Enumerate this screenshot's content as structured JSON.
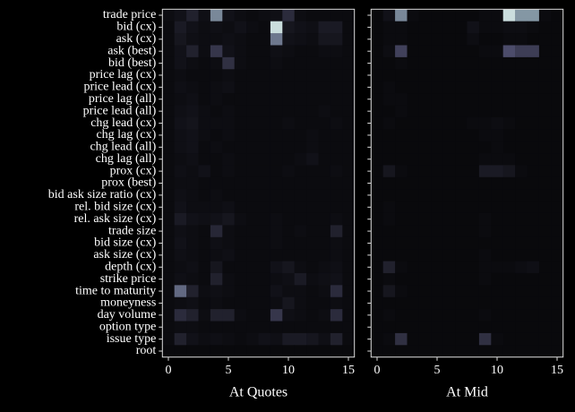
{
  "chart_data": [
    {
      "type": "heatmap",
      "xlabel": "At Quotes",
      "colormap": "bone",
      "categories": [
        "trade price",
        "bid (cx)",
        "ask (cx)",
        "ask (best)",
        "bid (best)",
        "price lag (cx)",
        "price lead (cx)",
        "price lag (all)",
        "price lead (all)",
        "chg lead (cx)",
        "chg lag (cx)",
        "chg lead (all)",
        "chg lag (all)",
        "prox (cx)",
        "prox (best)",
        "bid ask size ratio (cx)",
        "rel. bid size (cx)",
        "rel. ask size (cx)",
        "trade size",
        "bid size (cx)",
        "ask size (cx)",
        "depth (cx)",
        "strike price",
        "time to maturity",
        "moneyness",
        "day volume",
        "option type",
        "issue type",
        "root"
      ],
      "xlim": [
        -0.5,
        15.5
      ],
      "xticks": [
        0,
        5,
        10,
        15
      ],
      "z": [
        [
          0.06,
          0.08,
          0.15,
          0.07,
          0.55,
          0.08,
          0.06,
          0.05,
          0.06,
          0.07,
          0.2,
          0.06,
          0.05,
          0.05,
          0.05,
          0.05
        ],
        [
          0.05,
          0.12,
          0.08,
          0.06,
          0.07,
          0.06,
          0.08,
          0.06,
          0.05,
          0.85,
          0.1,
          0.08,
          0.07,
          0.12,
          0.12,
          0.05
        ],
        [
          0.05,
          0.1,
          0.07,
          0.06,
          0.06,
          0.07,
          0.06,
          0.05,
          0.05,
          0.5,
          0.08,
          0.07,
          0.06,
          0.1,
          0.1,
          0.05
        ],
        [
          0.05,
          0.08,
          0.15,
          0.06,
          0.25,
          0.08,
          0.06,
          0.05,
          0.05,
          0.07,
          0.06,
          0.05,
          0.05,
          0.06,
          0.06,
          0.05
        ],
        [
          0.05,
          0.08,
          0.06,
          0.05,
          0.06,
          0.22,
          0.06,
          0.05,
          0.05,
          0.06,
          0.05,
          0.05,
          0.05,
          0.05,
          0.05,
          0.05
        ],
        [
          0.05,
          0.06,
          0.05,
          0.05,
          0.05,
          0.06,
          0.05,
          0.05,
          0.05,
          0.05,
          0.05,
          0.05,
          0.05,
          0.05,
          0.05,
          0.05
        ],
        [
          0.05,
          0.07,
          0.06,
          0.05,
          0.06,
          0.07,
          0.05,
          0.05,
          0.05,
          0.05,
          0.05,
          0.05,
          0.05,
          0.05,
          0.05,
          0.05
        ],
        [
          0.05,
          0.06,
          0.07,
          0.05,
          0.06,
          0.05,
          0.05,
          0.05,
          0.05,
          0.05,
          0.05,
          0.05,
          0.05,
          0.05,
          0.05,
          0.05
        ],
        [
          0.05,
          0.07,
          0.08,
          0.06,
          0.05,
          0.06,
          0.05,
          0.05,
          0.05,
          0.05,
          0.05,
          0.05,
          0.05,
          0.06,
          0.05,
          0.05
        ],
        [
          0.05,
          0.08,
          0.09,
          0.06,
          0.06,
          0.06,
          0.05,
          0.05,
          0.05,
          0.05,
          0.06,
          0.05,
          0.05,
          0.05,
          0.06,
          0.05
        ],
        [
          0.05,
          0.07,
          0.08,
          0.06,
          0.05,
          0.06,
          0.05,
          0.05,
          0.05,
          0.05,
          0.05,
          0.05,
          0.06,
          0.05,
          0.05,
          0.05
        ],
        [
          0.05,
          0.07,
          0.08,
          0.05,
          0.06,
          0.05,
          0.05,
          0.05,
          0.05,
          0.05,
          0.05,
          0.05,
          0.06,
          0.05,
          0.05,
          0.05
        ],
        [
          0.05,
          0.06,
          0.07,
          0.05,
          0.05,
          0.06,
          0.05,
          0.05,
          0.05,
          0.05,
          0.05,
          0.06,
          0.08,
          0.05,
          0.05,
          0.05
        ],
        [
          0.05,
          0.07,
          0.06,
          0.08,
          0.05,
          0.06,
          0.05,
          0.05,
          0.05,
          0.05,
          0.06,
          0.05,
          0.05,
          0.05,
          0.06,
          0.05
        ],
        [
          0.05,
          0.06,
          0.06,
          0.05,
          0.05,
          0.05,
          0.05,
          0.05,
          0.05,
          0.05,
          0.05,
          0.05,
          0.05,
          0.05,
          0.05,
          0.05
        ],
        [
          0.05,
          0.07,
          0.06,
          0.05,
          0.06,
          0.05,
          0.05,
          0.05,
          0.05,
          0.05,
          0.05,
          0.05,
          0.05,
          0.05,
          0.05,
          0.05
        ],
        [
          0.05,
          0.08,
          0.06,
          0.06,
          0.06,
          0.07,
          0.05,
          0.05,
          0.05,
          0.05,
          0.05,
          0.05,
          0.05,
          0.05,
          0.05,
          0.05
        ],
        [
          0.05,
          0.12,
          0.08,
          0.07,
          0.08,
          0.1,
          0.06,
          0.05,
          0.05,
          0.06,
          0.05,
          0.05,
          0.05,
          0.05,
          0.06,
          0.05
        ],
        [
          0.05,
          0.07,
          0.06,
          0.05,
          0.18,
          0.06,
          0.05,
          0.05,
          0.05,
          0.06,
          0.05,
          0.06,
          0.05,
          0.05,
          0.15,
          0.05
        ],
        [
          0.05,
          0.08,
          0.06,
          0.05,
          0.07,
          0.06,
          0.05,
          0.05,
          0.05,
          0.06,
          0.05,
          0.05,
          0.05,
          0.05,
          0.06,
          0.05
        ],
        [
          0.05,
          0.07,
          0.06,
          0.05,
          0.06,
          0.07,
          0.05,
          0.05,
          0.05,
          0.05,
          0.05,
          0.05,
          0.05,
          0.05,
          0.06,
          0.05
        ],
        [
          0.05,
          0.06,
          0.07,
          0.05,
          0.1,
          0.05,
          0.05,
          0.05,
          0.05,
          0.08,
          0.1,
          0.06,
          0.05,
          0.06,
          0.07,
          0.05
        ],
        [
          0.05,
          0.07,
          0.06,
          0.05,
          0.15,
          0.06,
          0.05,
          0.05,
          0.05,
          0.06,
          0.07,
          0.12,
          0.06,
          0.07,
          0.08,
          0.05
        ],
        [
          0.05,
          0.45,
          0.15,
          0.06,
          0.07,
          0.06,
          0.05,
          0.05,
          0.05,
          0.08,
          0.06,
          0.06,
          0.05,
          0.06,
          0.2,
          0.05
        ],
        [
          0.05,
          0.06,
          0.07,
          0.05,
          0.06,
          0.05,
          0.05,
          0.05,
          0.05,
          0.06,
          0.1,
          0.06,
          0.05,
          0.05,
          0.06,
          0.05
        ],
        [
          0.05,
          0.2,
          0.15,
          0.06,
          0.15,
          0.15,
          0.06,
          0.05,
          0.05,
          0.25,
          0.07,
          0.06,
          0.05,
          0.06,
          0.2,
          0.05
        ],
        [
          0.05,
          0.06,
          0.06,
          0.05,
          0.05,
          0.05,
          0.05,
          0.05,
          0.05,
          0.05,
          0.05,
          0.05,
          0.05,
          0.05,
          0.05,
          0.05
        ],
        [
          0.05,
          0.15,
          0.08,
          0.06,
          0.07,
          0.06,
          0.05,
          0.06,
          0.08,
          0.07,
          0.12,
          0.12,
          0.1,
          0.07,
          0.15,
          0.05
        ],
        [
          0.04,
          0.04,
          0.04,
          0.04,
          0.04,
          0.04,
          0.04,
          0.04,
          0.04,
          0.04,
          0.04,
          0.04,
          0.04,
          0.04,
          0.04,
          0.04
        ]
      ]
    },
    {
      "type": "heatmap",
      "xlabel": "At Mid",
      "colormap": "bone",
      "xlim": [
        -0.5,
        15.5
      ],
      "xticks": [
        0,
        5,
        10,
        15
      ],
      "z": [
        [
          0.04,
          0.08,
          0.55,
          0.05,
          0.04,
          0.04,
          0.04,
          0.04,
          0.04,
          0.05,
          0.05,
          0.85,
          0.6,
          0.6,
          0.05,
          0.04
        ],
        [
          0.04,
          0.05,
          0.05,
          0.04,
          0.04,
          0.04,
          0.04,
          0.04,
          0.08,
          0.05,
          0.05,
          0.06,
          0.06,
          0.05,
          0.04,
          0.04
        ],
        [
          0.04,
          0.05,
          0.05,
          0.04,
          0.04,
          0.04,
          0.04,
          0.04,
          0.06,
          0.04,
          0.04,
          0.05,
          0.05,
          0.04,
          0.04,
          0.04
        ],
        [
          0.04,
          0.06,
          0.3,
          0.04,
          0.04,
          0.04,
          0.04,
          0.04,
          0.04,
          0.05,
          0.05,
          0.35,
          0.28,
          0.28,
          0.04,
          0.04
        ],
        [
          0.04,
          0.04,
          0.05,
          0.04,
          0.04,
          0.04,
          0.04,
          0.04,
          0.04,
          0.04,
          0.04,
          0.04,
          0.04,
          0.04,
          0.04,
          0.04
        ],
        [
          0.04,
          0.04,
          0.04,
          0.04,
          0.04,
          0.04,
          0.04,
          0.04,
          0.04,
          0.04,
          0.04,
          0.04,
          0.04,
          0.04,
          0.04,
          0.04
        ],
        [
          0.04,
          0.05,
          0.04,
          0.04,
          0.04,
          0.04,
          0.04,
          0.04,
          0.04,
          0.04,
          0.04,
          0.04,
          0.04,
          0.04,
          0.04,
          0.04
        ],
        [
          0.04,
          0.05,
          0.05,
          0.04,
          0.04,
          0.04,
          0.04,
          0.04,
          0.04,
          0.04,
          0.04,
          0.04,
          0.04,
          0.04,
          0.04,
          0.04
        ],
        [
          0.04,
          0.04,
          0.05,
          0.04,
          0.04,
          0.04,
          0.04,
          0.04,
          0.04,
          0.04,
          0.04,
          0.04,
          0.04,
          0.04,
          0.04,
          0.04
        ],
        [
          0.04,
          0.05,
          0.04,
          0.04,
          0.04,
          0.04,
          0.04,
          0.04,
          0.05,
          0.05,
          0.06,
          0.05,
          0.04,
          0.04,
          0.04,
          0.04
        ],
        [
          0.04,
          0.04,
          0.04,
          0.04,
          0.04,
          0.04,
          0.04,
          0.04,
          0.04,
          0.05,
          0.05,
          0.04,
          0.04,
          0.04,
          0.04,
          0.04
        ],
        [
          0.04,
          0.04,
          0.04,
          0.04,
          0.04,
          0.04,
          0.04,
          0.04,
          0.04,
          0.04,
          0.05,
          0.04,
          0.04,
          0.04,
          0.04,
          0.04
        ],
        [
          0.04,
          0.04,
          0.04,
          0.04,
          0.04,
          0.04,
          0.04,
          0.04,
          0.04,
          0.05,
          0.05,
          0.05,
          0.04,
          0.04,
          0.04,
          0.04
        ],
        [
          0.04,
          0.1,
          0.05,
          0.04,
          0.04,
          0.04,
          0.04,
          0.04,
          0.04,
          0.12,
          0.12,
          0.1,
          0.05,
          0.04,
          0.04,
          0.04
        ],
        [
          0.04,
          0.04,
          0.04,
          0.04,
          0.04,
          0.04,
          0.04,
          0.04,
          0.04,
          0.04,
          0.04,
          0.04,
          0.04,
          0.04,
          0.04,
          0.04
        ],
        [
          0.04,
          0.04,
          0.04,
          0.04,
          0.04,
          0.04,
          0.04,
          0.04,
          0.04,
          0.04,
          0.04,
          0.04,
          0.04,
          0.04,
          0.04,
          0.04
        ],
        [
          0.04,
          0.05,
          0.04,
          0.04,
          0.04,
          0.04,
          0.04,
          0.04,
          0.04,
          0.04,
          0.04,
          0.04,
          0.04,
          0.04,
          0.04,
          0.04
        ],
        [
          0.04,
          0.05,
          0.04,
          0.04,
          0.04,
          0.04,
          0.04,
          0.04,
          0.04,
          0.05,
          0.04,
          0.04,
          0.04,
          0.04,
          0.04,
          0.04
        ],
        [
          0.04,
          0.04,
          0.04,
          0.04,
          0.04,
          0.04,
          0.04,
          0.04,
          0.04,
          0.05,
          0.04,
          0.04,
          0.04,
          0.04,
          0.04,
          0.04
        ],
        [
          0.04,
          0.04,
          0.04,
          0.04,
          0.04,
          0.04,
          0.04,
          0.04,
          0.04,
          0.04,
          0.04,
          0.04,
          0.04,
          0.04,
          0.04,
          0.04
        ],
        [
          0.04,
          0.04,
          0.04,
          0.04,
          0.04,
          0.04,
          0.04,
          0.04,
          0.04,
          0.05,
          0.04,
          0.04,
          0.04,
          0.04,
          0.04,
          0.04
        ],
        [
          0.04,
          0.15,
          0.05,
          0.04,
          0.04,
          0.04,
          0.04,
          0.04,
          0.04,
          0.05,
          0.05,
          0.05,
          0.06,
          0.07,
          0.04,
          0.04
        ],
        [
          0.04,
          0.05,
          0.04,
          0.04,
          0.04,
          0.04,
          0.04,
          0.04,
          0.04,
          0.05,
          0.04,
          0.04,
          0.04,
          0.04,
          0.04,
          0.04
        ],
        [
          0.04,
          0.1,
          0.05,
          0.04,
          0.04,
          0.04,
          0.04,
          0.04,
          0.04,
          0.04,
          0.04,
          0.04,
          0.04,
          0.04,
          0.04,
          0.04
        ],
        [
          0.04,
          0.04,
          0.04,
          0.04,
          0.04,
          0.04,
          0.04,
          0.04,
          0.04,
          0.04,
          0.04,
          0.04,
          0.04,
          0.04,
          0.04,
          0.04
        ],
        [
          0.04,
          0.05,
          0.04,
          0.04,
          0.04,
          0.04,
          0.04,
          0.04,
          0.04,
          0.05,
          0.04,
          0.04,
          0.04,
          0.04,
          0.04,
          0.04
        ],
        [
          0.04,
          0.04,
          0.04,
          0.04,
          0.04,
          0.04,
          0.04,
          0.04,
          0.04,
          0.04,
          0.04,
          0.04,
          0.04,
          0.04,
          0.04,
          0.04
        ],
        [
          0.04,
          0.05,
          0.22,
          0.04,
          0.04,
          0.04,
          0.04,
          0.04,
          0.04,
          0.22,
          0.05,
          0.04,
          0.04,
          0.04,
          0.04,
          0.04
        ],
        [
          0.04,
          0.04,
          0.04,
          0.04,
          0.04,
          0.04,
          0.04,
          0.04,
          0.04,
          0.04,
          0.04,
          0.04,
          0.04,
          0.04,
          0.04,
          0.04
        ]
      ]
    }
  ]
}
